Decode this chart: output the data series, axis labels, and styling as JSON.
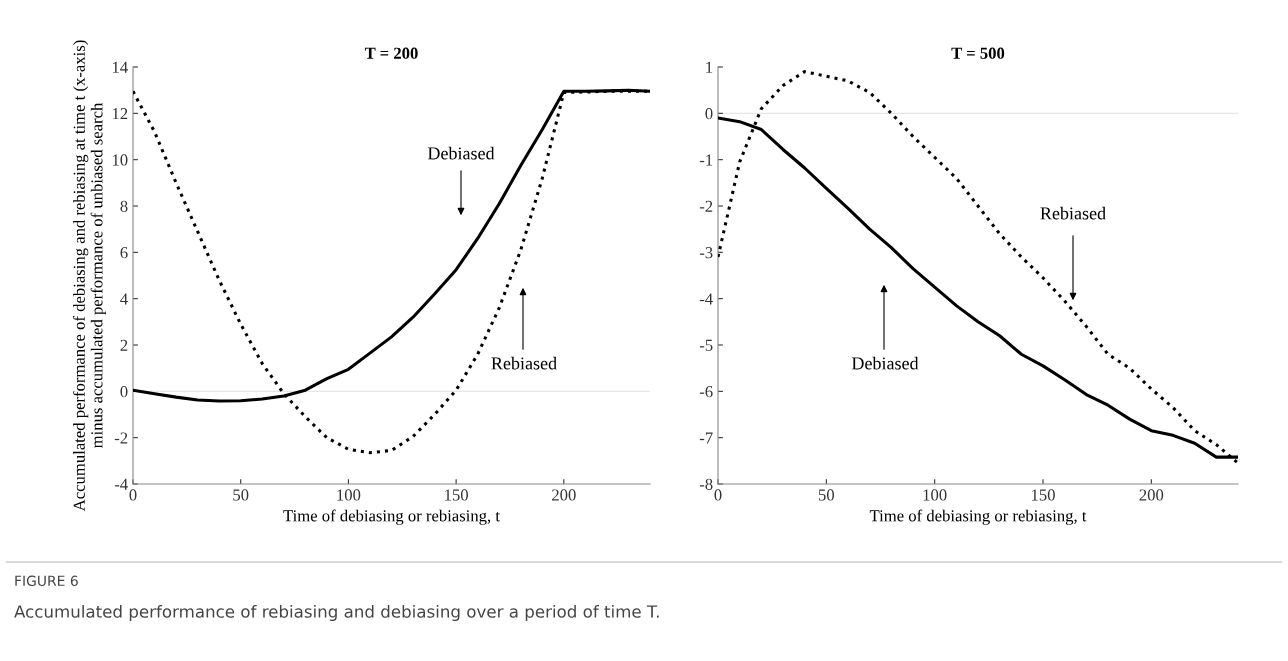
{
  "chart_data": [
    {
      "type": "line",
      "title": "T = 200",
      "xlabel": "Time of debiasing or rebiasing, t",
      "ylabel": "Accumulated performance of debiasing and rebiasing at time t (x-axis)\nminus accumulated performance of unbiased search",
      "x": [
        0,
        10,
        20,
        30,
        40,
        50,
        60,
        70,
        80,
        90,
        100,
        110,
        120,
        130,
        140,
        150,
        160,
        170,
        180,
        190,
        200,
        210,
        220,
        230,
        240
      ],
      "series": [
        {
          "color": "#000000",
          "line_style": "solid",
          "values": [
            0.05,
            -0.1,
            -0.25,
            -0.37,
            -0.42,
            -0.41,
            -0.33,
            -0.2,
            0.05,
            0.55,
            0.95,
            1.65,
            2.35,
            3.2,
            4.2,
            5.25,
            6.6,
            8.1,
            9.75,
            11.3,
            12.95,
            12.95,
            12.97,
            13.0,
            12.95
          ]
        },
        {
          "color": "#000000",
          "line_style": "dotted",
          "values": [
            12.95,
            11.2,
            9.0,
            6.9,
            4.8,
            2.9,
            1.2,
            -0.1,
            -1.1,
            -2.0,
            -2.5,
            -2.65,
            -2.55,
            -1.95,
            -1.0,
            0.05,
            1.6,
            3.6,
            6.1,
            9.2,
            12.9,
            12.92,
            12.95,
            12.95,
            12.95
          ]
        }
      ],
      "xlim": [
        0,
        240
      ],
      "xticks": [
        0,
        50,
        100,
        150,
        200
      ],
      "ylim": [
        -4,
        14
      ],
      "yticks": [
        -4,
        -2,
        0,
        2,
        4,
        6,
        8,
        10,
        12,
        14
      ],
      "ref_lines": [
        {
          "axis": "y",
          "value": 0,
          "color": "#e6e6e6"
        }
      ],
      "annotations": [
        "Debiased",
        "Rebiased"
      ],
      "grid": false,
      "legend": false
    },
    {
      "type": "line",
      "title": "T = 500",
      "xlabel": "Time of debiasing or rebiasing, t",
      "x": [
        0,
        10,
        20,
        30,
        40,
        50,
        60,
        70,
        80,
        90,
        100,
        110,
        120,
        130,
        140,
        150,
        160,
        170,
        180,
        190,
        200,
        210,
        220,
        230,
        240
      ],
      "series": [
        {
          "color": "#000000",
          "line_style": "solid",
          "values": [
            -0.1,
            -0.18,
            -0.35,
            -0.78,
            -1.18,
            -1.62,
            -2.05,
            -2.5,
            -2.9,
            -3.35,
            -3.75,
            -4.15,
            -4.5,
            -4.8,
            -5.2,
            -5.45,
            -5.75,
            -6.07,
            -6.3,
            -6.6,
            -6.85,
            -6.95,
            -7.12,
            -7.42,
            -7.42
          ]
        },
        {
          "color": "#000000",
          "line_style": "dotted",
          "values": [
            -3.1,
            -1.05,
            0.1,
            0.6,
            0.9,
            0.8,
            0.7,
            0.45,
            0.0,
            -0.5,
            -0.95,
            -1.4,
            -2.0,
            -2.6,
            -3.1,
            -3.55,
            -4.05,
            -4.6,
            -5.2,
            -5.5,
            -5.95,
            -6.35,
            -6.85,
            -7.15,
            -7.55
          ]
        }
      ],
      "xlim": [
        0,
        240
      ],
      "xticks": [
        0,
        50,
        100,
        150,
        200
      ],
      "ylim": [
        -8,
        1
      ],
      "yticks": [
        -8,
        -7,
        -6,
        -5,
        -4,
        -3,
        -2,
        -1,
        0,
        1
      ],
      "ref_lines": [
        {
          "axis": "y",
          "value": 0,
          "color": "#e6e6e6"
        }
      ],
      "annotations": [
        "Rebiased",
        "Debiased",
        "FIGURE 6",
        "Accumulated performance of rebiasing and debiasing over a period of time T."
      ],
      "grid": false,
      "legend": false
    }
  ]
}
